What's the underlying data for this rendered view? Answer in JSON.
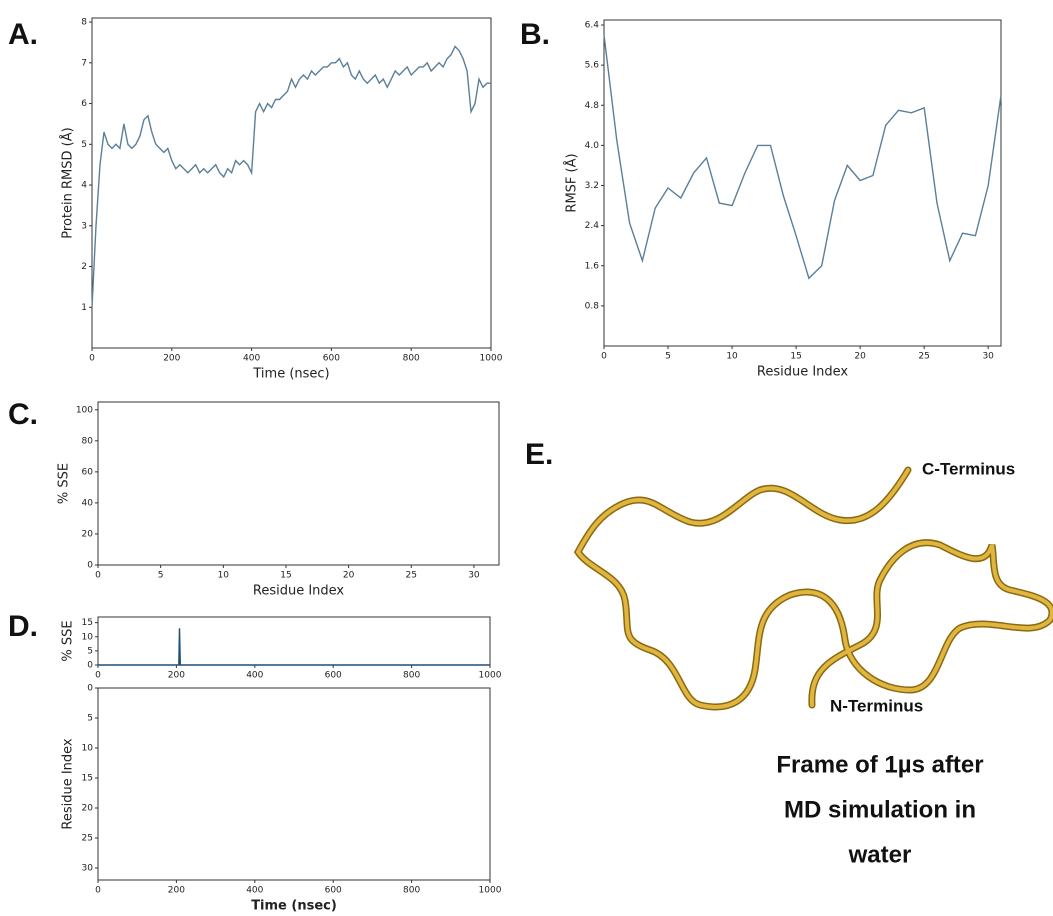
{
  "panel_labels": [
    "A.",
    "B.",
    "C.",
    "D.",
    "E."
  ],
  "structure": {
    "c_terminus": "C-Terminus",
    "n_terminus": "N-Terminus",
    "caption": [
      "Frame of 1µs after",
      "MD simulation in",
      "water"
    ]
  },
  "chart_data": [
    {
      "type": "line",
      "xlabel": "Time (nsec)",
      "ylabel": "Protein RMSD (Å)",
      "color": "#5b7f99",
      "xlim": [
        0,
        1000
      ],
      "xticks": [
        0,
        200,
        400,
        600,
        800,
        1000
      ],
      "ylim": [
        0,
        8.1
      ],
      "yticks": [
        1,
        2,
        3,
        4,
        5,
        6,
        7,
        8
      ],
      "x": [
        0,
        10,
        20,
        30,
        40,
        50,
        60,
        70,
        80,
        90,
        100,
        110,
        120,
        130,
        140,
        150,
        160,
        170,
        180,
        190,
        200,
        210,
        220,
        230,
        240,
        250,
        260,
        270,
        280,
        290,
        300,
        310,
        320,
        330,
        340,
        350,
        360,
        370,
        380,
        390,
        400,
        410,
        420,
        430,
        440,
        450,
        460,
        470,
        480,
        490,
        500,
        510,
        520,
        530,
        540,
        550,
        560,
        570,
        580,
        590,
        600,
        610,
        620,
        630,
        640,
        650,
        660,
        670,
        680,
        690,
        700,
        710,
        720,
        730,
        740,
        750,
        760,
        770,
        780,
        790,
        800,
        810,
        820,
        830,
        840,
        850,
        860,
        870,
        880,
        890,
        900,
        910,
        920,
        930,
        940,
        950,
        960,
        970,
        980,
        990,
        1000
      ],
      "values": [
        1.0,
        3.0,
        4.5,
        5.3,
        5.0,
        4.9,
        5.0,
        4.9,
        5.5,
        5.0,
        4.9,
        5.0,
        5.2,
        5.6,
        5.7,
        5.3,
        5.0,
        4.9,
        4.8,
        4.9,
        4.6,
        4.4,
        4.5,
        4.4,
        4.3,
        4.4,
        4.5,
        4.3,
        4.4,
        4.3,
        4.4,
        4.5,
        4.3,
        4.2,
        4.4,
        4.3,
        4.6,
        4.5,
        4.6,
        4.5,
        4.3,
        5.8,
        6.0,
        5.8,
        6.0,
        5.9,
        6.1,
        6.1,
        6.2,
        6.3,
        6.6,
        6.4,
        6.6,
        6.7,
        6.6,
        6.8,
        6.7,
        6.8,
        6.9,
        6.9,
        7.0,
        7.0,
        7.1,
        6.9,
        7.0,
        6.7,
        6.6,
        6.8,
        6.6,
        6.5,
        6.6,
        6.7,
        6.5,
        6.6,
        6.4,
        6.6,
        6.8,
        6.7,
        6.8,
        6.9,
        6.7,
        6.8,
        6.9,
        6.9,
        7.0,
        6.8,
        6.9,
        7.0,
        6.9,
        7.1,
        7.2,
        7.4,
        7.3,
        7.1,
        6.8,
        5.8,
        6.0,
        6.6,
        6.4,
        6.5,
        6.5
      ]
    },
    {
      "type": "line",
      "xlabel": "Residue Index",
      "ylabel": "RMSF (Å)",
      "color": "#5b7f99",
      "xlim": [
        0,
        31
      ],
      "xticks": [
        0,
        5,
        10,
        15,
        20,
        25,
        30
      ],
      "ylim": [
        0,
        6.5
      ],
      "yticks": [
        0.8,
        1.6,
        2.4,
        3.2,
        {
          "value": 4,
          "label": "4.0"
        },
        4.8,
        5.6,
        6.4
      ],
      "x": [
        0,
        1,
        2,
        3,
        4,
        5,
        6,
        7,
        8,
        9,
        10,
        11,
        12,
        13,
        14,
        15,
        16,
        17,
        18,
        19,
        20,
        21,
        22,
        23,
        24,
        25,
        26,
        27,
        28,
        29,
        30,
        31
      ],
      "values": [
        6.2,
        4.1,
        2.45,
        1.7,
        2.75,
        3.15,
        2.95,
        3.45,
        3.75,
        2.85,
        2.8,
        3.45,
        4.0,
        4.0,
        3.0,
        2.2,
        1.35,
        1.6,
        2.9,
        3.6,
        3.3,
        3.4,
        4.4,
        4.7,
        4.65,
        4.75,
        2.85,
        1.7,
        2.25,
        2.2,
        3.2,
        5.0
      ]
    },
    {
      "type": "bar",
      "xlabel": "Residue Index",
      "ylabel": "% SSE",
      "color": "#1f4e79",
      "xlim": [
        0,
        32
      ],
      "xticks": [
        0,
        5,
        10,
        15,
        20,
        25,
        30
      ],
      "ylim": [
        0,
        105
      ],
      "yticks": [
        0,
        20,
        40,
        60,
        80,
        100
      ],
      "x": [
        0,
        1,
        2,
        3,
        4,
        5,
        6,
        7,
        8,
        9,
        10,
        11,
        12,
        13,
        14,
        15,
        16,
        17,
        18,
        19,
        20,
        21,
        22,
        23,
        24,
        25,
        26,
        27,
        28,
        29,
        30,
        31
      ],
      "values": [
        0,
        0,
        0,
        0,
        0,
        0,
        0,
        0,
        0,
        0,
        0,
        0,
        0,
        0,
        0,
        0,
        0,
        0,
        0,
        0,
        0,
        0,
        0,
        0,
        0,
        0,
        0,
        0,
        0,
        0,
        0,
        0
      ]
    },
    {
      "type": "line",
      "ylabel": "% SSE",
      "color": "#1f4e79",
      "xlim": [
        0,
        1000
      ],
      "xticks": [
        0,
        200,
        400,
        600,
        800,
        1000
      ],
      "ylim": [
        0,
        17
      ],
      "yticks": [
        0,
        5,
        10,
        15
      ],
      "x": [
        0,
        206,
        208,
        210,
        1000
      ],
      "values": [
        0,
        0,
        13,
        0,
        0
      ]
    },
    {
      "type": "heatmap",
      "xlabel": "Time (nsec)",
      "ylabel": "Residue Index",
      "xlim": [
        0,
        1000
      ],
      "xticks": [
        0,
        200,
        400,
        600,
        800,
        1000
      ],
      "ylim": [
        32,
        0
      ],
      "yticks": [
        0,
        5,
        10,
        15,
        20,
        25,
        30
      ]
    }
  ]
}
